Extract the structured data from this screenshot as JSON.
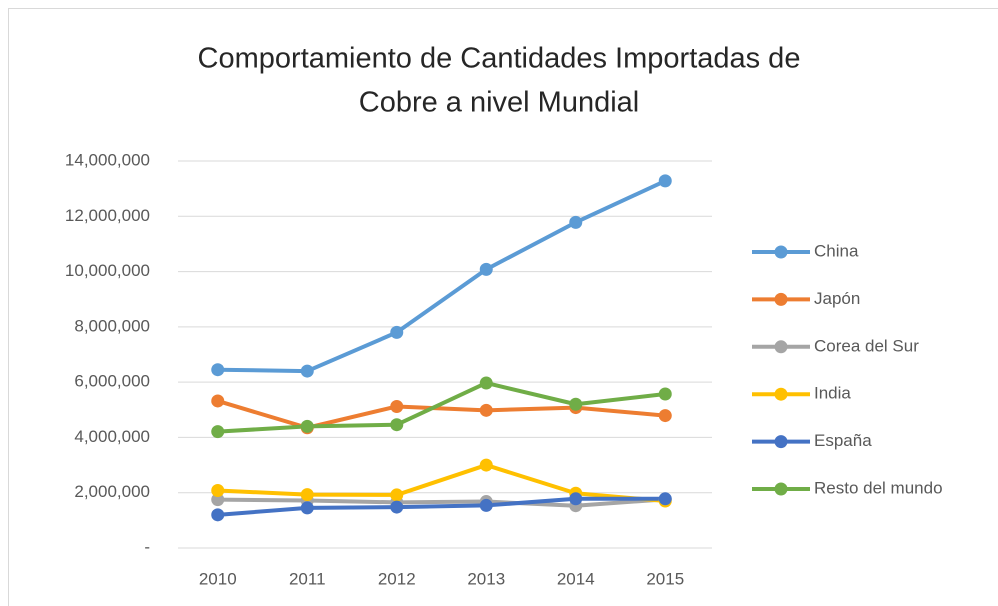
{
  "chart_data": {
    "type": "line",
    "title": [
      "Comportamiento de Cantidades Importadas de",
      "Cobre a nivel Mundial"
    ],
    "categories": [
      "2010",
      "2011",
      "2012",
      "2013",
      "2014",
      "2015"
    ],
    "series": [
      {
        "name": "China",
        "color": "#5b9bd5",
        "values": [
          6450000,
          6400000,
          7800000,
          10080000,
          11780000,
          13280000
        ]
      },
      {
        "name": "Japón",
        "color": "#ed7d31",
        "values": [
          5320000,
          4350000,
          5120000,
          4980000,
          5080000,
          4790000
        ]
      },
      {
        "name": "Corea del Sur",
        "color": "#a5a5a5",
        "values": [
          1750000,
          1720000,
          1650000,
          1680000,
          1530000,
          1760000
        ]
      },
      {
        "name": "India",
        "color": "#ffc000",
        "values": [
          2080000,
          1930000,
          1920000,
          3000000,
          1980000,
          1700000
        ]
      },
      {
        "name": "España",
        "color": "#4472c4",
        "values": [
          1200000,
          1450000,
          1480000,
          1540000,
          1780000,
          1780000
        ]
      },
      {
        "name": "Resto del mundo",
        "color": "#70ad47",
        "values": [
          4210000,
          4400000,
          4460000,
          5970000,
          5200000,
          5570000
        ]
      }
    ],
    "ylim": [
      0,
      14000000
    ],
    "yticks": [
      {
        "value": 0,
        "label": "-"
      },
      {
        "value": 2000000,
        "label": "2,000,000"
      },
      {
        "value": 4000000,
        "label": "4,000,000"
      },
      {
        "value": 6000000,
        "label": "6,000,000"
      },
      {
        "value": 8000000,
        "label": "8,000,000"
      },
      {
        "value": 10000000,
        "label": "10,000,000"
      },
      {
        "value": 12000000,
        "label": "12,000,000"
      },
      {
        "value": 14000000,
        "label": "14,000,000"
      }
    ],
    "grid": true,
    "legend": "right"
  }
}
